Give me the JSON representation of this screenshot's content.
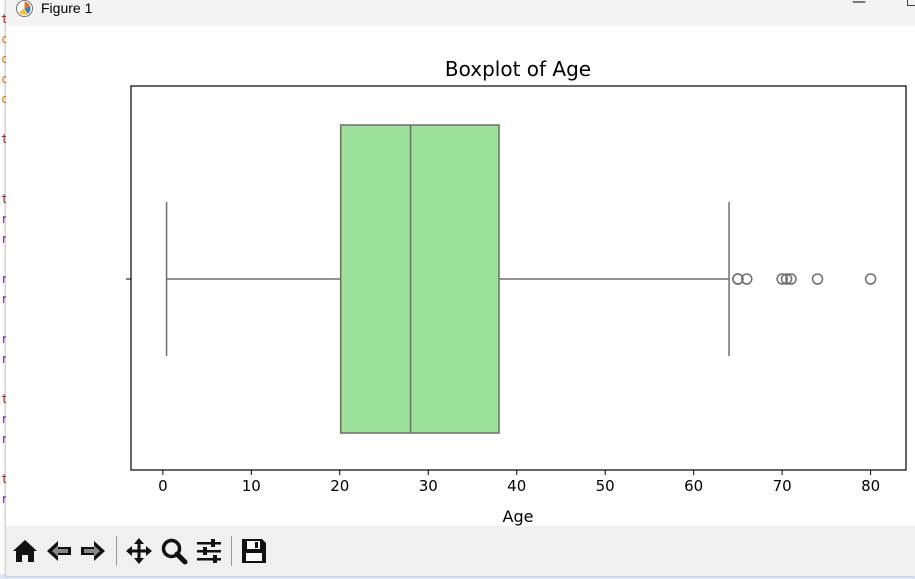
{
  "window": {
    "title": "Figure 1",
    "minimize_label": "—",
    "maximize_label": "☐"
  },
  "toolbar": {
    "buttons": [
      {
        "name": "home-icon"
      },
      {
        "name": "back-icon"
      },
      {
        "name": "forward-icon"
      },
      {
        "name": "pan-icon"
      },
      {
        "name": "zoom-icon"
      },
      {
        "name": "configure-subplots-icon"
      },
      {
        "name": "save-icon"
      }
    ]
  },
  "chart_data": {
    "type": "boxplot",
    "title": "Boxplot of Age",
    "xlabel": "Age",
    "ylabel": "",
    "xlim": [
      -3.6,
      84
    ],
    "xticks": [
      0,
      10,
      20,
      30,
      40,
      50,
      60,
      70,
      80
    ],
    "box": {
      "whisker_low": 0.42,
      "q1": 20.1,
      "median": 28,
      "q3": 38,
      "whisker_high": 64,
      "outliers": [
        65,
        65,
        66,
        70,
        70.5,
        71,
        74,
        80
      ]
    },
    "box_color": "#9ce29b",
    "line_color": "#6e6e6e",
    "grid": false
  },
  "colors": {
    "accent": "#9ce29b",
    "titlebar": "#f3f3f3",
    "toolbar": "#f0f0f0"
  }
}
